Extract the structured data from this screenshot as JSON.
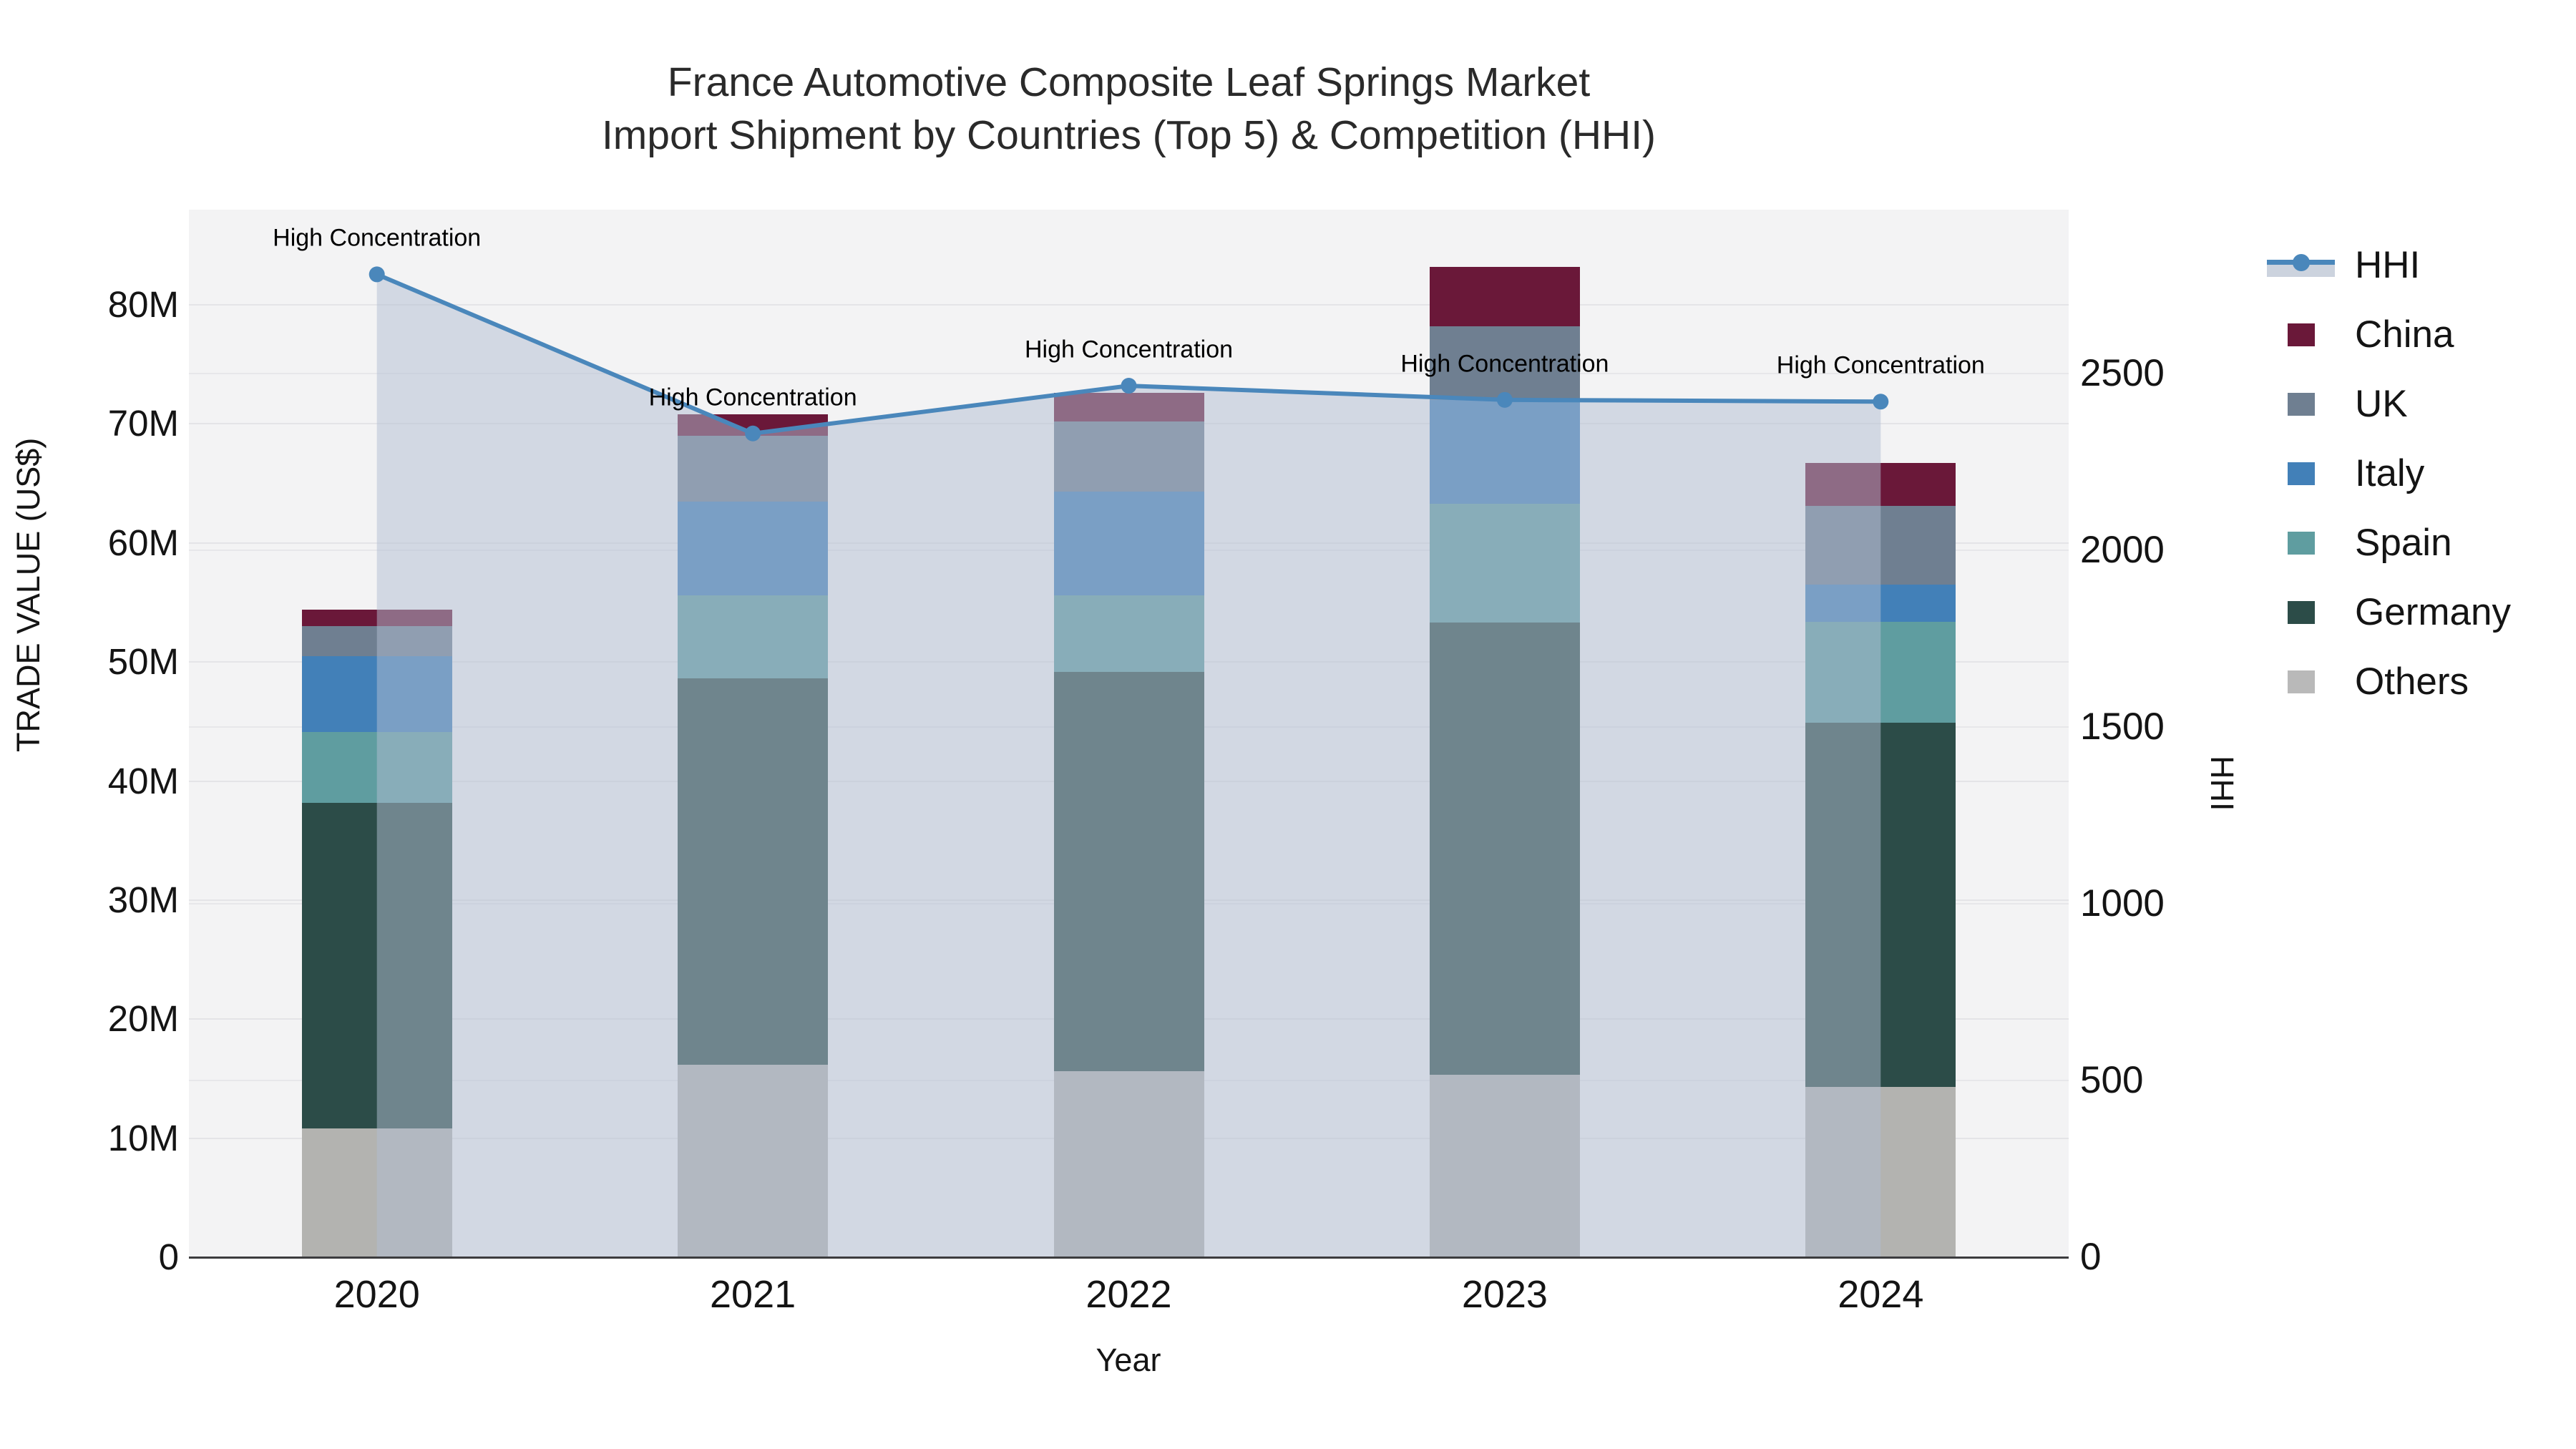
{
  "title": {
    "line1": "France Automotive Composite Leaf Springs Market",
    "line2": "Import Shipment by Countries (Top 5) & Competition (HHI)"
  },
  "axes": {
    "left": {
      "title": "TRADE VALUE (US$)",
      "ticks": [
        "0",
        "10M",
        "20M",
        "30M",
        "40M",
        "50M",
        "60M",
        "70M",
        "80M"
      ],
      "tick_values": [
        0,
        10,
        20,
        30,
        40,
        50,
        60,
        70,
        80
      ],
      "max": 88,
      "unit": "M US$"
    },
    "right": {
      "title": "HHI",
      "ticks": [
        "0",
        "500",
        "1000",
        "1500",
        "2000",
        "2500"
      ],
      "tick_values": [
        0,
        500,
        1000,
        1500,
        2000,
        2500
      ],
      "max": 2963
    },
    "x": {
      "title": "Year",
      "categories": [
        "2020",
        "2021",
        "2022",
        "2023",
        "2024"
      ]
    }
  },
  "annotation_label": "High Concentration",
  "legend_labels": [
    "HHI",
    "China",
    "UK",
    "Italy",
    "Spain",
    "Germany",
    "Others"
  ],
  "colors": {
    "hhi_line": "#4a87bb",
    "hhi_fill": "rgba(178,190,209,0.5)",
    "china": "#6a1839",
    "uk": "#6f7f91",
    "italy": "#4280b8",
    "spain": "#5f9da0",
    "germany": "#2c4c48",
    "others": "#b3b3b0",
    "plot_bg": "#f3f3f4",
    "gridline": "#e4e4e7"
  },
  "chart_data": {
    "type": "bar",
    "subtype": "stacked-bar-with-line-overlay",
    "categories": [
      "2020",
      "2021",
      "2022",
      "2023",
      "2024"
    ],
    "stack_order_bottom_to_top": [
      "Others",
      "Germany",
      "Spain",
      "Italy",
      "UK",
      "China"
    ],
    "series": [
      {
        "name": "China",
        "color_key": "china",
        "values": [
          1.4,
          1.8,
          2.4,
          5.0,
          3.6
        ]
      },
      {
        "name": "UK",
        "color_key": "uk",
        "values": [
          2.5,
          5.5,
          5.9,
          6.2,
          6.6
        ]
      },
      {
        "name": "Italy",
        "color_key": "italy",
        "values": [
          6.4,
          7.9,
          8.7,
          8.7,
          3.1
        ]
      },
      {
        "name": "Spain",
        "color_key": "spain",
        "values": [
          5.9,
          7.0,
          6.4,
          10.0,
          8.5
        ]
      },
      {
        "name": "Germany",
        "color_key": "germany",
        "values": [
          27.4,
          32.4,
          33.6,
          38.0,
          30.6
        ]
      },
      {
        "name": "Others",
        "color_key": "others",
        "values": [
          10.8,
          16.2,
          15.6,
          15.3,
          14.3
        ]
      }
    ],
    "bar_totals": [
      54.4,
      70.8,
      72.6,
      83.2,
      66.7
    ],
    "line": {
      "name": "HHI",
      "axis": "right",
      "values": [
        2780,
        2330,
        2465,
        2425,
        2420
      ],
      "annotations": [
        "High Concentration",
        "High Concentration",
        "High Concentration",
        "High Concentration",
        "High Concentration"
      ]
    },
    "title": "France Automotive Composite Leaf Springs Market — Import Shipment by Countries (Top 5) & Competition (HHI)",
    "xlabel": "Year",
    "ylabel_left": "TRADE VALUE (US$)",
    "ylabel_right": "HHI",
    "ylim_left": [
      0,
      88000000
    ],
    "ylim_right": [
      0,
      2963
    ],
    "grid": true,
    "legend_position": "right"
  }
}
